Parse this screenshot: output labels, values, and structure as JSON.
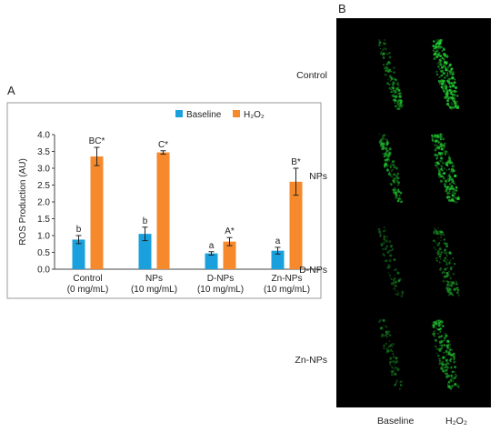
{
  "panel_a_letter": "A",
  "panel_b_letter": "B",
  "chart_data": {
    "type": "bar",
    "ylabel": "ROS Production (AU)",
    "ylim": [
      0,
      4.0
    ],
    "yticks": [
      "0.0",
      "0.5",
      "1.0",
      "1.5",
      "2.0",
      "2.5",
      "3.0",
      "3.5",
      "4.0"
    ],
    "categories": [
      {
        "line1": "Control",
        "line2": "(0 mg/mL)"
      },
      {
        "line1": "NPs",
        "line2": "(10 mg/mL)"
      },
      {
        "line1": "D-NPs",
        "line2": "(10 mg/mL)"
      },
      {
        "line1": "Zn-NPs",
        "line2": "(10 mg/mL)"
      }
    ],
    "legend_position": "top-right",
    "series": [
      {
        "name": "Baseline",
        "color": "#1aa0dc",
        "values": [
          0.88,
          1.05,
          0.47,
          0.55
        ],
        "errors": [
          0.12,
          0.2,
          0.05,
          0.1
        ],
        "labels": [
          "b",
          "b",
          "a",
          "a"
        ]
      },
      {
        "name": "H₂O₂",
        "color": "#f5892b",
        "values": [
          3.35,
          3.47,
          0.82,
          2.6
        ],
        "errors": [
          0.27,
          0.05,
          0.12,
          0.4
        ],
        "labels": [
          "BC*",
          "C*",
          "A*",
          "B*"
        ]
      }
    ]
  },
  "micrographs": {
    "rows": [
      "Control",
      "NPs",
      "D-NPs",
      "Zn-NPs"
    ],
    "columns": [
      "Baseline",
      "H₂O₂"
    ],
    "signal_color": "#22cc33",
    "intensity": [
      [
        0.45,
        0.9
      ],
      [
        0.5,
        0.85
      ],
      [
        0.2,
        0.45
      ],
      [
        0.2,
        0.65
      ]
    ]
  }
}
